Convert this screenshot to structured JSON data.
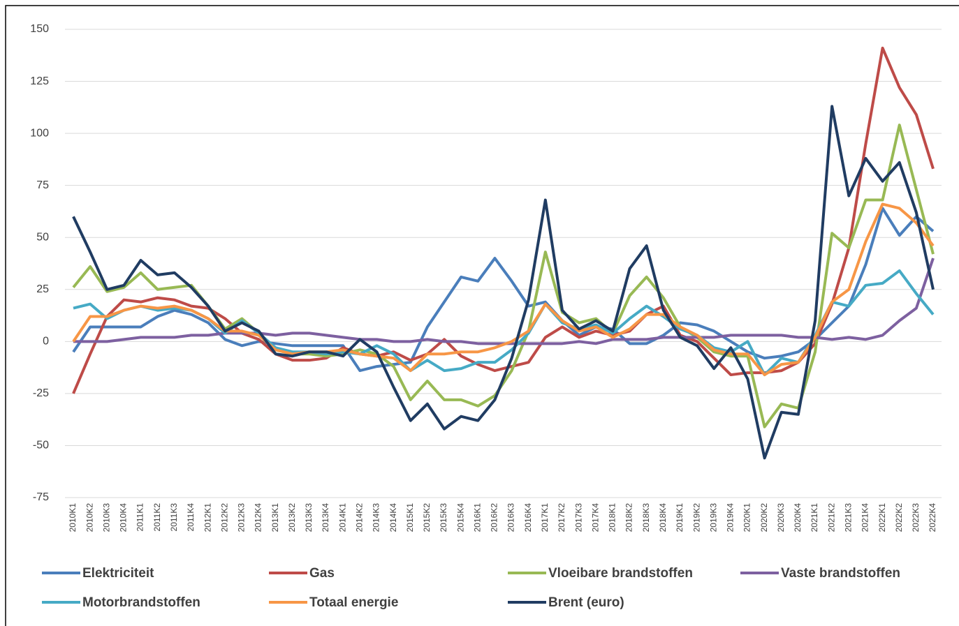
{
  "chart_data": {
    "type": "line",
    "categories": [
      "2010K1",
      "2010K2",
      "2010K3",
      "2010K4",
      "2011K1",
      "2011K2",
      "2011K3",
      "2011K4",
      "2012K1",
      "2012K2",
      "2012K3",
      "2012K4",
      "2013K1",
      "2013K2",
      "2013K3",
      "2013K4",
      "2014K1",
      "2014K2",
      "2014K3",
      "2014K4",
      "2015K1",
      "2015K2",
      "2015K3",
      "2015K4",
      "2016K1",
      "2016K2",
      "2016K3",
      "2016K4",
      "2017K1",
      "2017K2",
      "2017K3",
      "2017K4",
      "2018K1",
      "2018K2",
      "2018K3",
      "2018K4",
      "2019K1",
      "2019K2",
      "2019K3",
      "2019K4",
      "2020K1",
      "2020K2",
      "2020K3",
      "2020K4",
      "2021K1",
      "2021K2",
      "2021K3",
      "2021K4",
      "2022K1",
      "2022K2",
      "2022K3",
      "2022K4"
    ],
    "series": [
      {
        "name": "Elektriciteit",
        "color": "#4a7ebb",
        "values": [
          -5,
          7,
          7,
          7,
          7,
          12,
          15,
          13,
          9,
          1,
          -2,
          0,
          -1,
          -2,
          -2,
          -2,
          -2,
          -14,
          -12,
          -11,
          -10,
          7,
          19,
          31,
          29,
          40,
          29,
          17,
          19,
          10,
          3,
          7,
          6,
          -1,
          -1,
          3,
          9,
          8,
          5,
          0,
          -5,
          -8,
          -7,
          -5,
          1,
          9,
          17,
          37,
          64,
          51,
          60,
          53
        ]
      },
      {
        "name": "Gas",
        "color": "#be4b48",
        "values": [
          -25,
          -6,
          12,
          20,
          19,
          21,
          20,
          17,
          16,
          11,
          4,
          1,
          -6,
          -9,
          -9,
          -8,
          -3,
          -6,
          -7,
          -5,
          -9,
          -6,
          1,
          -7,
          -11,
          -14,
          -12,
          -10,
          2,
          7,
          2,
          5,
          3,
          5,
          13,
          17,
          3,
          0,
          -8,
          -16,
          -15,
          -15,
          -14,
          -10,
          -1,
          18,
          45,
          95,
          141,
          122,
          109,
          83
        ]
      },
      {
        "name": "Vloeibare brandstoffen",
        "color": "#98b954",
        "values": [
          26,
          36,
          24,
          26,
          33,
          25,
          26,
          27,
          17,
          6,
          11,
          4,
          -4,
          -6,
          -6,
          -7,
          -6,
          -4,
          -6,
          -12,
          -28,
          -19,
          -28,
          -28,
          -31,
          -26,
          -14,
          5,
          43,
          14,
          9,
          11,
          4,
          22,
          31,
          21,
          7,
          2,
          -5,
          -7,
          -7,
          -41,
          -30,
          -32,
          -5,
          52,
          45,
          68,
          68,
          104,
          73,
          42
        ]
      },
      {
        "name": "Vaste brandstoffen",
        "color": "#7d60a0",
        "values": [
          0,
          0,
          0,
          1,
          2,
          2,
          2,
          3,
          3,
          4,
          4,
          4,
          3,
          4,
          4,
          3,
          2,
          1,
          1,
          0,
          0,
          1,
          0,
          0,
          -1,
          -1,
          -1,
          -1,
          -1,
          -1,
          0,
          -1,
          1,
          1,
          1,
          2,
          2,
          2,
          2,
          3,
          3,
          3,
          3,
          2,
          2,
          1,
          2,
          1,
          3,
          10,
          16,
          40
        ]
      },
      {
        "name": "Motorbrandstoffen",
        "color": "#46aac5",
        "values": [
          16,
          18,
          11,
          15,
          17,
          15,
          16,
          15,
          11,
          4,
          10,
          4,
          -3,
          -5,
          -5,
          -6,
          -5,
          -6,
          -2,
          -6,
          -14,
          -9,
          -14,
          -13,
          -10,
          -10,
          -4,
          4,
          18,
          9,
          6,
          8,
          4,
          11,
          17,
          12,
          6,
          3,
          -3,
          -5,
          0,
          -16,
          -8,
          -10,
          3,
          19,
          17,
          27,
          28,
          34,
          23,
          13
        ]
      },
      {
        "name": "Totaal energie",
        "color": "#f79646",
        "values": [
          0,
          12,
          12,
          15,
          17,
          16,
          17,
          15,
          11,
          5,
          5,
          3,
          -4,
          -6,
          -5,
          -5,
          -4,
          -6,
          -7,
          -8,
          -14,
          -6,
          -6,
          -5,
          -5,
          -3,
          0,
          5,
          18,
          10,
          5,
          7,
          2,
          6,
          13,
          13,
          7,
          3,
          -4,
          -6,
          -6,
          -16,
          -11,
          -10,
          2,
          19,
          25,
          48,
          66,
          64,
          57,
          46
        ]
      },
      {
        "name": "Brent (euro)",
        "color": "#203c62",
        "values": [
          60,
          43,
          25,
          27,
          39,
          32,
          33,
          26,
          17,
          5,
          9,
          5,
          -6,
          -7,
          -5,
          -5,
          -7,
          1,
          -5,
          -22,
          -38,
          -30,
          -42,
          -36,
          -38,
          -28,
          -8,
          20,
          68,
          15,
          6,
          10,
          5,
          35,
          46,
          15,
          2,
          -2,
          -13,
          -3,
          -18,
          -56,
          -34,
          -35,
          10,
          113,
          70,
          88,
          77,
          86,
          62,
          25
        ]
      }
    ],
    "ylim": [
      -75,
      150
    ],
    "yticks": [
      -75,
      -50,
      -25,
      0,
      25,
      50,
      75,
      100,
      125,
      150
    ],
    "grid": true
  }
}
